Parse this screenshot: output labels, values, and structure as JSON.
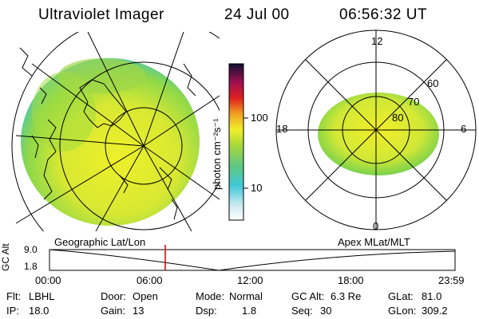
{
  "header": {
    "instrument": "Ultraviolet Imager",
    "date": "24 Jul 00",
    "time": "06:56:32 UT"
  },
  "colorbar": {
    "label": "photon cm⁻²s⁻¹",
    "ticks": [
      "100",
      "10"
    ]
  },
  "polar": {
    "mlt_labels": [
      "12",
      "18",
      "6",
      "0"
    ],
    "lat_labels": [
      "60",
      "70",
      "80"
    ]
  },
  "panels": {
    "left_caption": "Geographic Lat/Lon",
    "right_caption": "Apex MLat/MLT"
  },
  "altitude_plot": {
    "ylabel": "GC Alt",
    "yticks": [
      "9.0",
      "1.8"
    ],
    "xticks": [
      "00:00",
      "06:00",
      "12:00",
      "18:00",
      "23:59"
    ],
    "current_time_marker": "06:56"
  },
  "info": {
    "flt_label": "Flt:",
    "flt_value": "LBHL",
    "door_label": "Door:",
    "door_value": "Open",
    "mode_label": "Mode:",
    "mode_value": "Normal",
    "gcalt_label": "GC Alt:",
    "gcalt_value": "6.3 Re",
    "glat_label": "GLat:",
    "glat_value": "81.0",
    "ip_label": "IP:",
    "ip_value": "18.0",
    "gain_label": "Gain:",
    "gain_value": "13",
    "dsp_label": "Dsp:",
    "dsp_value": "1.8",
    "seq_label": "Seq:",
    "seq_value": "30",
    "glon_label": "GLon:",
    "glon_value": "309.2"
  },
  "colors": {
    "image_yellow": "#e8ec2a",
    "image_green": "#7ed34a",
    "marker_red": "#cc0000"
  }
}
